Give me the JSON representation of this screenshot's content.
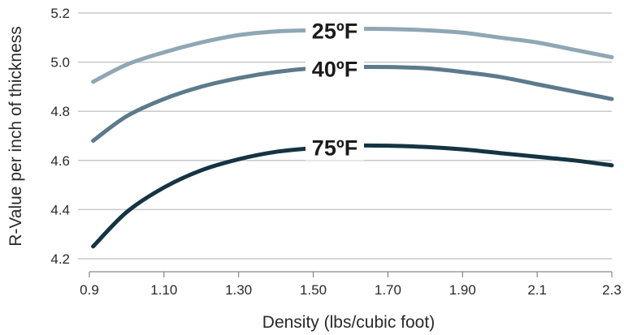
{
  "chart_data": {
    "type": "line",
    "xlabel": "Density (lbs/cubic foot)",
    "ylabel": "R-Value per inch of thickness",
    "xlim": [
      0.9,
      2.3
    ],
    "ylim": [
      4.2,
      5.2
    ],
    "x_ticks": [
      "0.9",
      "1.10",
      "1.30",
      "1.50",
      "1.70",
      "1.90",
      "2.1",
      "2.3"
    ],
    "y_ticks": [
      "4.2",
      "4.4",
      "4.6",
      "4.8",
      "5.0",
      "5.2"
    ],
    "grid": "horizontal",
    "legend": "inline labels",
    "series": [
      {
        "name": "25ºF",
        "color": "#8fa7b5",
        "x": [
          0.91,
          1.0,
          1.1,
          1.2,
          1.3,
          1.4,
          1.5,
          1.6,
          1.7,
          1.8,
          1.9,
          2.0,
          2.1,
          2.2,
          2.3
        ],
        "y": [
          4.92,
          4.99,
          5.04,
          5.08,
          5.11,
          5.125,
          5.13,
          5.135,
          5.135,
          5.13,
          5.12,
          5.1,
          5.08,
          5.05,
          5.02
        ]
      },
      {
        "name": "40ºF",
        "color": "#5c7a8c",
        "x": [
          0.91,
          1.0,
          1.1,
          1.2,
          1.3,
          1.4,
          1.5,
          1.6,
          1.7,
          1.8,
          1.9,
          2.0,
          2.1,
          2.2,
          2.3
        ],
        "y": [
          4.68,
          4.78,
          4.85,
          4.9,
          4.935,
          4.96,
          4.975,
          4.98,
          4.98,
          4.975,
          4.96,
          4.94,
          4.91,
          4.88,
          4.85
        ]
      },
      {
        "name": "75ºF",
        "color": "#153443",
        "x": [
          0.91,
          1.0,
          1.1,
          1.2,
          1.3,
          1.4,
          1.5,
          1.6,
          1.7,
          1.8,
          1.9,
          2.0,
          2.1,
          2.2,
          2.3
        ],
        "y": [
          4.25,
          4.39,
          4.49,
          4.56,
          4.605,
          4.635,
          4.65,
          4.66,
          4.66,
          4.655,
          4.645,
          4.63,
          4.615,
          4.6,
          4.58
        ]
      }
    ]
  }
}
